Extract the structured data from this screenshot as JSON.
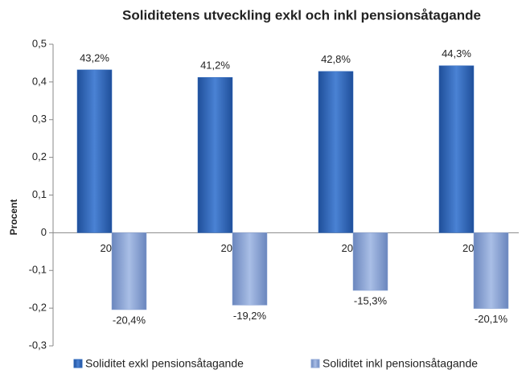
{
  "chart_data": {
    "type": "bar",
    "title": "Soliditetens utveckling exkl och inkl pensionsåtagande",
    "y_label": "Procent",
    "categories": [
      "2008",
      "2009",
      "2010",
      "2011"
    ],
    "series": [
      {
        "name": "Soliditet exkl pensionsåtagande",
        "color": "#2f69bd",
        "values": [
          0.432,
          0.412,
          0.428,
          0.443
        ],
        "value_labels": [
          "43,2%",
          "41,2%",
          "42,8%",
          "44,3%"
        ]
      },
      {
        "name": "Soliditet inkl pensionsåtagande",
        "color": "#8ca5d6",
        "values": [
          -0.204,
          -0.192,
          -0.153,
          -0.201
        ],
        "value_labels": [
          "-20,4%",
          "-19,2%",
          "-15,3%",
          "-20,1%"
        ]
      }
    ],
    "ylim": [
      -0.3,
      0.5
    ],
    "yticks": [
      {
        "value": -0.3,
        "label": "-0,3"
      },
      {
        "value": -0.2,
        "label": "-0,2"
      },
      {
        "value": -0.1,
        "label": "-0,1"
      },
      0,
      {
        "value": 0.1,
        "label": "0,1"
      },
      {
        "value": 0.2,
        "label": "0,2"
      },
      {
        "value": 0.3,
        "label": "0,3"
      },
      {
        "value": 0.4,
        "label": "0,4"
      },
      {
        "value": 0.5,
        "label": "0,5"
      }
    ],
    "grid": false,
    "legend": "bottom"
  }
}
